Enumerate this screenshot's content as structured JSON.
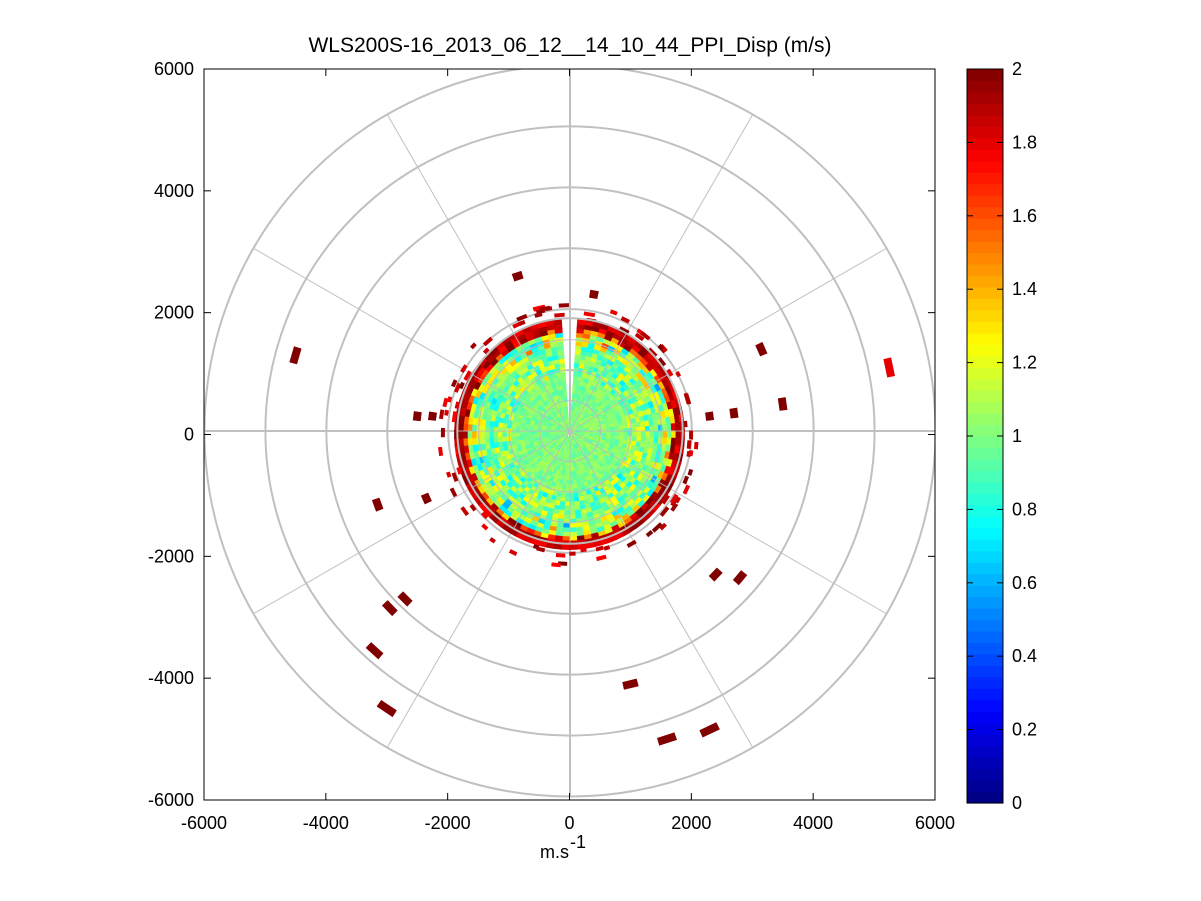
{
  "chart_data": {
    "type": "heatmap",
    "subtype": "polar-ppi",
    "title": "WLS200S-16_2013_06_12__14_10_44_PPI_Disp (m/s)",
    "xlabel": "m.s",
    "xlabel_superscript": "-1",
    "ylabel": "",
    "xlim": [
      -6000,
      6000
    ],
    "ylim": [
      -6000,
      6000
    ],
    "x_ticks": [
      "-6000",
      "-4000",
      "-2000",
      "0",
      "2000",
      "4000",
      "6000"
    ],
    "y_ticks": [
      "6000",
      "4000",
      "2000",
      "0",
      "-2000",
      "-4000",
      "-6000"
    ],
    "polar_grid": {
      "rings": [
        1000,
        2000,
        3000,
        4000,
        5000,
        6000
      ],
      "spokes_deg": [
        0,
        30,
        60,
        90,
        120,
        150,
        180,
        210,
        240,
        270,
        300,
        330
      ]
    },
    "colorbar": {
      "min": 0,
      "max": 2,
      "colormap": "jet",
      "ticks": [
        "0",
        "0.2",
        "0.4",
        "0.6",
        "0.8",
        "1",
        "1.2",
        "1.4",
        "1.6",
        "1.8",
        "2"
      ]
    },
    "core_field": {
      "radius": 1850,
      "typical_value": 1.0,
      "edge_value": 2.0,
      "gap_azimuth_deg": [
        -2,
        2
      ]
    },
    "scatter_cells": [
      {
        "x": -4500,
        "y": 1300,
        "value": 2.0
      },
      {
        "x": -850,
        "y": 2600,
        "value": 2.0
      },
      {
        "x": 400,
        "y": 2300,
        "value": 2.0
      },
      {
        "x": 5250,
        "y": 1100,
        "value": 1.8
      },
      {
        "x": 3150,
        "y": 1400,
        "value": 2.0
      },
      {
        "x": 3500,
        "y": 500,
        "value": 2.0
      },
      {
        "x": 2700,
        "y": 350,
        "value": 2.0
      },
      {
        "x": 2300,
        "y": 300,
        "value": 2.0
      },
      {
        "x": -2500,
        "y": 300,
        "value": 2.0
      },
      {
        "x": -2250,
        "y": 300,
        "value": 2.0
      },
      {
        "x": -3150,
        "y": -1150,
        "value": 2.0
      },
      {
        "x": -2350,
        "y": -1050,
        "value": 2.0
      },
      {
        "x": -2700,
        "y": -2700,
        "value": 2.0
      },
      {
        "x": -2950,
        "y": -2850,
        "value": 2.0
      },
      {
        "x": -3200,
        "y": -3550,
        "value": 2.0
      },
      {
        "x": -3000,
        "y": -4500,
        "value": 2.0
      },
      {
        "x": 2400,
        "y": -2300,
        "value": 2.0
      },
      {
        "x": 2800,
        "y": -2350,
        "value": 2.0
      },
      {
        "x": 1000,
        "y": -4100,
        "value": 2.0
      },
      {
        "x": 1600,
        "y": -5000,
        "value": 2.0
      },
      {
        "x": 2300,
        "y": -4850,
        "value": 2.0
      }
    ]
  }
}
